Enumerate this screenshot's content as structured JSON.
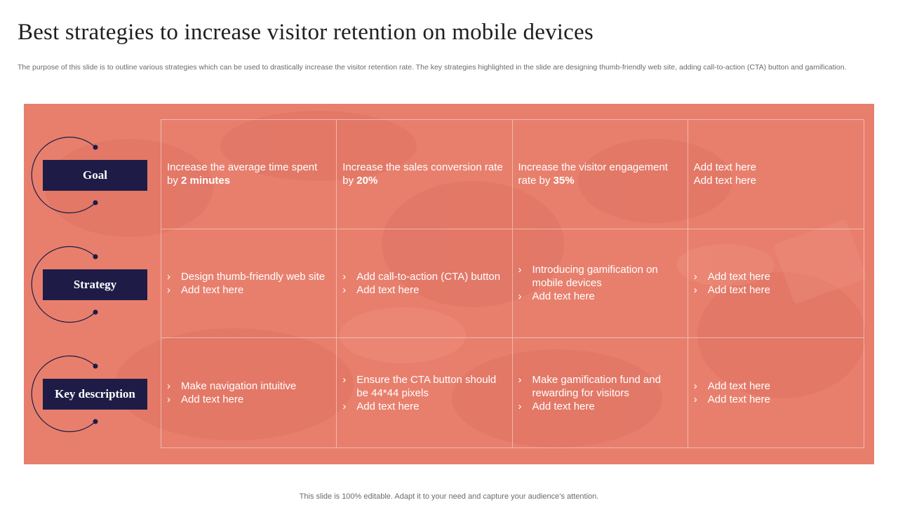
{
  "title": "Best strategies to increase visitor retention on mobile devices",
  "subtitle": "The purpose of this slide is to outline various strategies which can be used to drastically increase the visitor retention rate.  The key strategies highlighted in the slide are designing thumb-friendly web site, adding call-to-action (CTA) button and gamification.",
  "rows": [
    {
      "label": "Goal"
    },
    {
      "label": "Strategy"
    },
    {
      "label": "Key description"
    }
  ],
  "goals": [
    {
      "text": "Increase the average time spent by ",
      "bold": "2 minutes"
    },
    {
      "text": "Increase the sales conversion rate by ",
      "bold": "20%"
    },
    {
      "text": "Increase the visitor engagement rate by ",
      "bold": "35%"
    },
    {
      "line1": "Add text here",
      "line2": "Add text here"
    }
  ],
  "strategies": [
    [
      "Design thumb-friendly web site",
      "Add text here"
    ],
    [
      "Add call-to-action (CTA) button",
      "Add text here"
    ],
    [
      "Introducing gamification on mobile devices",
      "Add text here"
    ],
    [
      "Add text here",
      "Add text here"
    ]
  ],
  "descriptions": [
    [
      "Make navigation intuitive",
      "Add text here"
    ],
    [
      "Ensure the CTA button should be 44*44 pixels",
      "Add text here"
    ],
    [
      "Make gamification fund and rewarding for visitors",
      "Add text here"
    ],
    [
      "Add text here",
      "Add text here"
    ]
  ],
  "bullet_glyph": "›",
  "footer": "This slide is 100% editable. Adapt it to your need and capture your audience’s attention.",
  "colors": {
    "panel": "#e87f6d",
    "label_box": "#1e1c46",
    "text": "#ffffff"
  },
  "icons": [
    "chevron-right-icon",
    "arc-connector-icon"
  ]
}
